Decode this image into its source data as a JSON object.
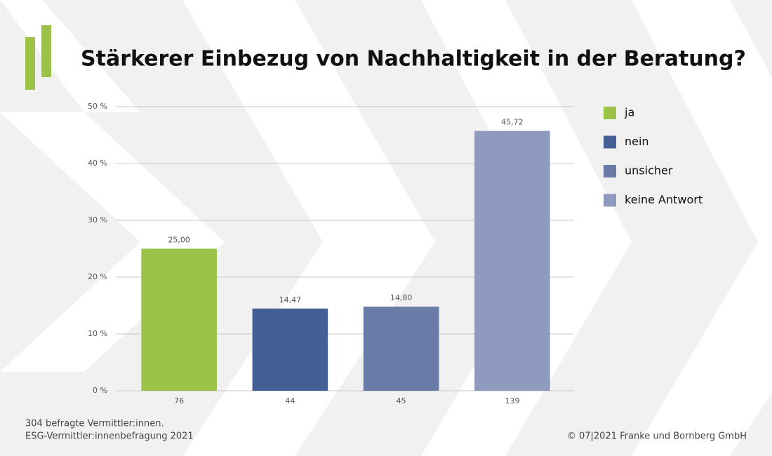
{
  "chart_data": {
    "type": "bar",
    "title": "Stärkerer Einbezug von Nachhaltigkeit in der Beratung?",
    "categories": [
      "76",
      "44",
      "45",
      "139"
    ],
    "values": [
      25.0,
      14.47,
      14.8,
      45.72
    ],
    "value_labels": [
      "25,00",
      "14,47",
      "14,80",
      "45,72"
    ],
    "legend": [
      "ja",
      "nein",
      "unsicher",
      "keine Antwort"
    ],
    "colors": [
      "#9bc348",
      "#435f93",
      "#6b7ba7",
      "#8f9abf"
    ],
    "ylim": [
      0,
      50
    ],
    "yticks": [
      {
        "value": 0,
        "label": "0 %"
      },
      {
        "value": 10,
        "label": "10 %"
      },
      {
        "value": 20,
        "label": "20 %"
      },
      {
        "value": 30,
        "label": "30 %"
      },
      {
        "value": 40,
        "label": "40 %"
      },
      {
        "value": 50,
        "label": "50 %"
      }
    ],
    "grid": true,
    "notes": [
      "304 befragte Vermittler:innen.",
      "ESG-Vermittler:innenbefragung 2021"
    ],
    "copyright": "© 07|2021 Franke und Bornberg GmbH"
  }
}
